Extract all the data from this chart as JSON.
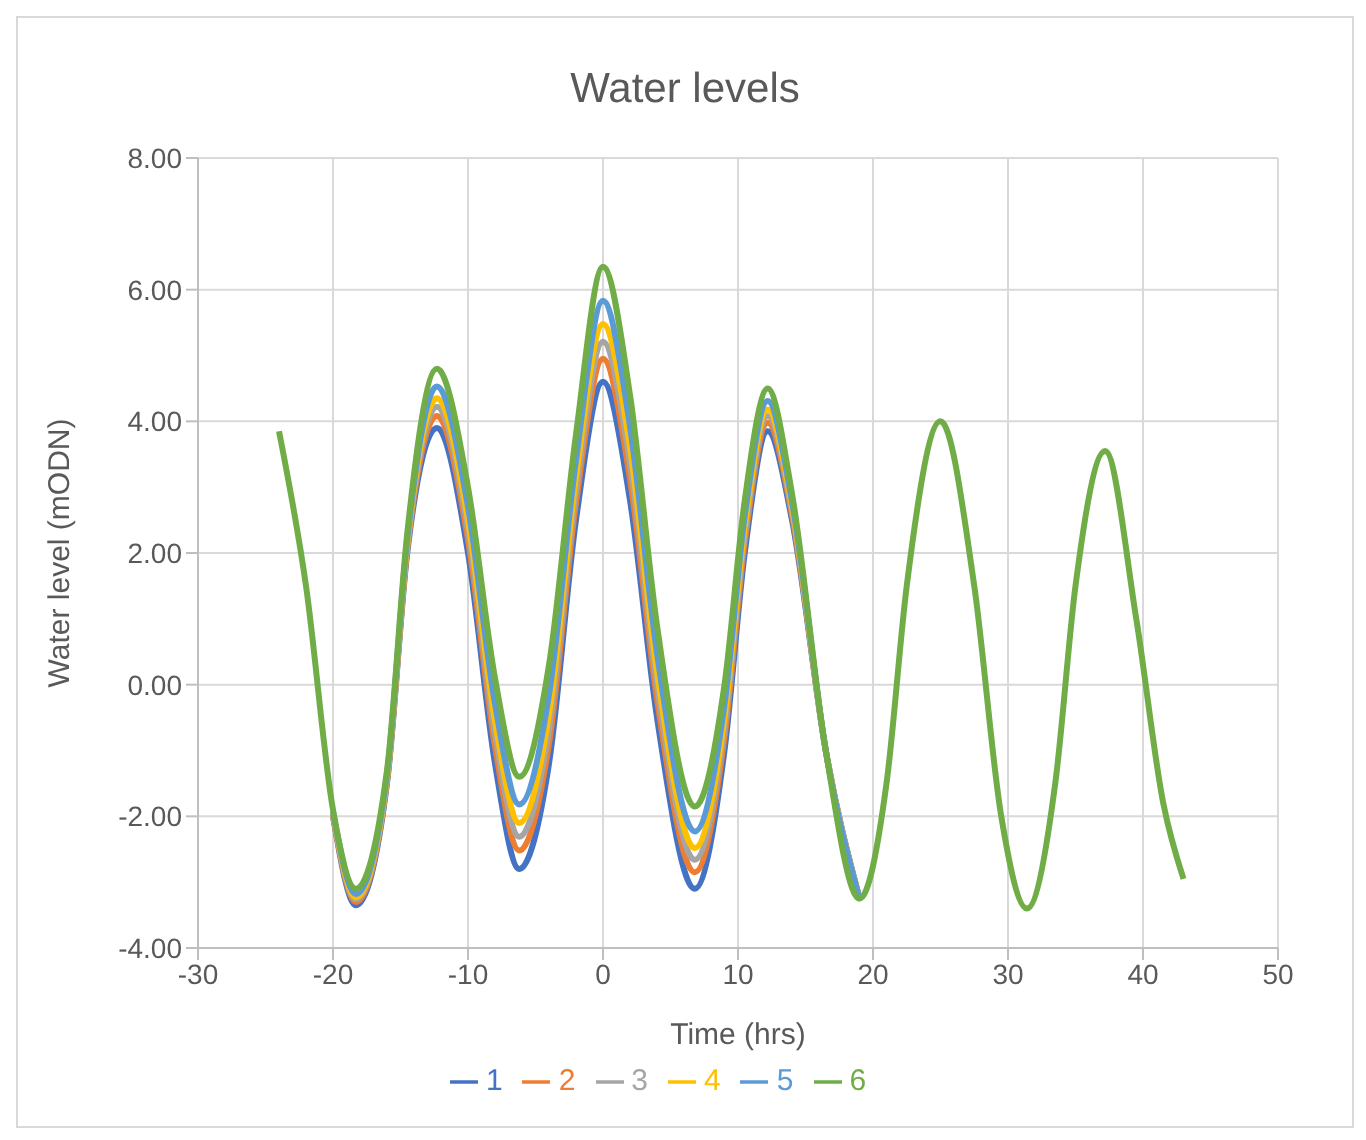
{
  "chart_data": {
    "type": "line",
    "title": "Water levels",
    "xlabel": "Time (hrs)",
    "ylabel": "Water level (mODN)",
    "x": [
      -24,
      -22,
      -20,
      -18.3,
      -16,
      -14.5,
      -12.3,
      -10,
      -8,
      -6.2,
      -4,
      -2,
      0,
      2,
      4,
      6.8,
      9,
      10.5,
      12.2,
      14,
      16.5,
      19,
      21,
      22.5,
      25,
      27.5,
      29.5,
      31.4,
      33.5,
      35,
      37.2,
      39.5,
      41.5,
      43
    ],
    "series": [
      {
        "name": "1",
        "color": "#4472c4",
        "values": [
          null,
          null,
          -2.0,
          -3.35,
          -1.5,
          2.0,
          3.9,
          2.0,
          -1.2,
          -2.8,
          -1.2,
          2.5,
          4.6,
          2.8,
          -0.5,
          -3.1,
          -1.0,
          2.0,
          3.85,
          2.5,
          -1.0,
          -3.25,
          null,
          null,
          null,
          null,
          null,
          null,
          null,
          null,
          null,
          null,
          null,
          null
        ]
      },
      {
        "name": "2",
        "color": "#ed7d31",
        "values": [
          null,
          null,
          -1.98,
          -3.3,
          -1.46,
          2.06,
          4.08,
          2.2,
          -0.94,
          -2.52,
          -0.9,
          2.76,
          4.95,
          3.12,
          -0.22,
          -2.85,
          -0.8,
          2.16,
          3.98,
          2.58,
          -1.0,
          -3.25,
          null,
          null,
          null,
          null,
          null,
          null,
          null,
          null,
          null,
          null,
          null,
          null
        ]
      },
      {
        "name": "3",
        "color": "#a5a5a5",
        "values": [
          null,
          null,
          -1.97,
          -3.26,
          -1.43,
          2.1,
          4.22,
          2.35,
          -0.75,
          -2.31,
          -0.68,
          2.95,
          5.21,
          3.36,
          -0.01,
          -2.66,
          -0.65,
          2.28,
          4.08,
          2.64,
          -1.0,
          -3.25,
          null,
          null,
          null,
          null,
          null,
          null,
          null,
          null,
          null,
          null,
          null,
          null
        ]
      },
      {
        "name": "4",
        "color": "#ffc000",
        "values": [
          null,
          null,
          -1.95,
          -3.23,
          -1.4,
          2.15,
          4.35,
          2.5,
          -0.55,
          -2.1,
          -0.45,
          3.15,
          5.48,
          3.6,
          0.2,
          -2.48,
          -0.5,
          2.4,
          4.18,
          2.7,
          -1.0,
          -3.25,
          null,
          null,
          null,
          null,
          null,
          null,
          null,
          null,
          null,
          null,
          null,
          null
        ]
      },
      {
        "name": "5",
        "color": "#5b9bd5",
        "values": [
          null,
          null,
          -1.93,
          -3.18,
          -1.36,
          2.21,
          4.53,
          2.7,
          -0.29,
          -1.82,
          -0.15,
          3.41,
          5.83,
          3.92,
          0.48,
          -2.23,
          -0.3,
          2.56,
          4.31,
          2.78,
          -1.0,
          -3.25,
          null,
          null,
          null,
          null,
          null,
          null,
          null,
          null,
          null,
          null,
          null,
          null
        ]
      },
      {
        "name": "6",
        "color": "#70ad47",
        "values": [
          3.85,
          1.5,
          -1.9,
          -3.1,
          -1.3,
          2.3,
          4.8,
          3.0,
          0.1,
          -1.4,
          0.3,
          3.8,
          6.35,
          4.4,
          0.9,
          -1.85,
          0.0,
          2.8,
          4.5,
          2.9,
          -1.0,
          -3.25,
          -1.5,
          1.5,
          4.0,
          1.5,
          -2.0,
          -3.4,
          -1.5,
          1.5,
          3.55,
          1.0,
          -1.8,
          -2.95
        ]
      }
    ],
    "xlim": [
      -30,
      50
    ],
    "xticks": [
      -30,
      -20,
      -10,
      0,
      10,
      20,
      30,
      40,
      50
    ],
    "ylim": [
      -4,
      8
    ],
    "yticks": [
      {
        "value": -4,
        "label": "-4.00"
      },
      {
        "value": -2,
        "label": "-2.00"
      },
      {
        "value": 0,
        "label": "0.00"
      },
      {
        "value": 2,
        "label": "2.00"
      },
      {
        "value": 4,
        "label": "4.00"
      },
      {
        "value": 6,
        "label": "6.00"
      },
      {
        "value": 8,
        "label": "8.00"
      }
    ],
    "grid": true,
    "legend": "bottom",
    "marker": "none",
    "line_style": "solid"
  }
}
